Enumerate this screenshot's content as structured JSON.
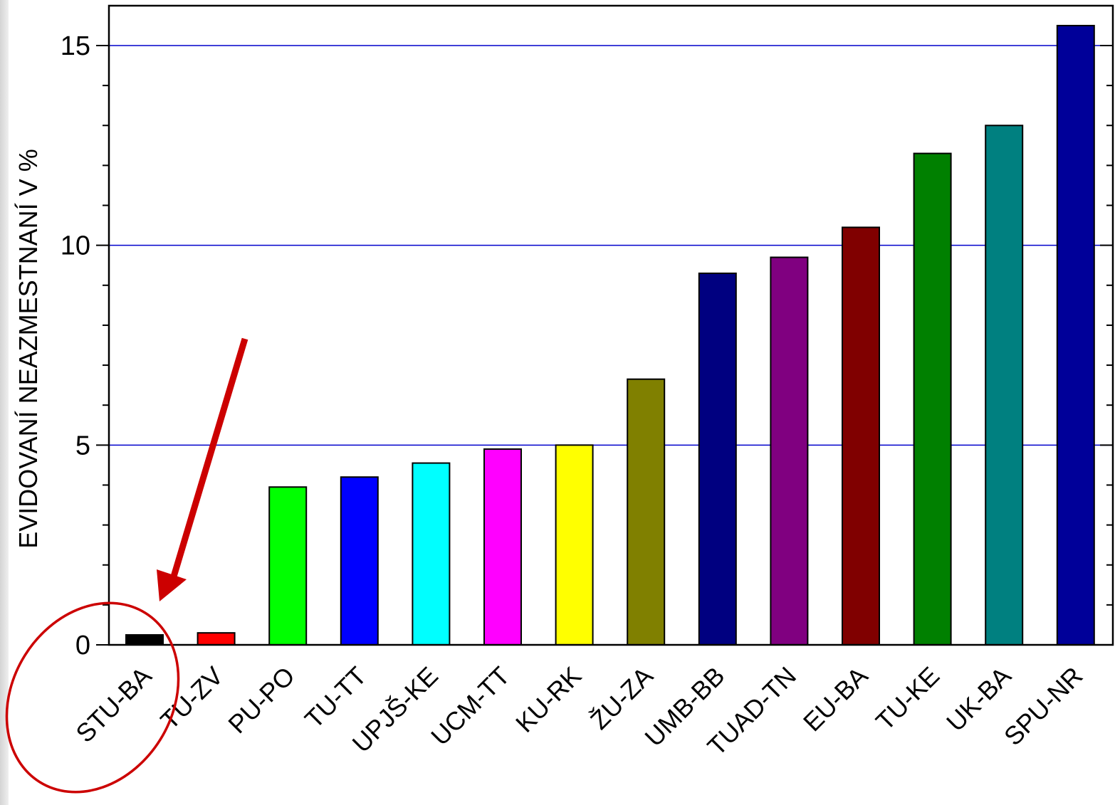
{
  "chart_data": {
    "type": "bar",
    "title": "",
    "xlabel": "",
    "ylabel": "EVIDOVANÍ NEAZMESTNANÍ V %",
    "ylim": [
      0,
      15.0
    ],
    "yticks": [
      0,
      5,
      10,
      15
    ],
    "grid": true,
    "grid_color": "#0000cc",
    "categories": [
      "STU-BA",
      "TU-ZV",
      "PU-PO",
      "TU-TT",
      "UPJŠ-KE",
      "UCM-TT",
      "KU-RK",
      "ŽU-ZA",
      "UMB-BB",
      "TUAD-TN",
      "EU-BA",
      "TU-KE",
      "UK-BA",
      "SPU-NR"
    ],
    "values": [
      0.25,
      0.3,
      3.95,
      4.2,
      4.55,
      4.9,
      5.0,
      6.65,
      9.3,
      9.7,
      10.45,
      12.3,
      13.0,
      15.5
    ],
    "colors": [
      "#000000",
      "#ff0000",
      "#00ff00",
      "#0000ff",
      "#00ffff",
      "#ff00ff",
      "#ffff00",
      "#808000",
      "#000080",
      "#800080",
      "#800000",
      "#008000",
      "#008080",
      "#000099"
    ],
    "annotation": {
      "type": "arrow-and-ellipse",
      "target_category": "STU-BA",
      "color": "#cc0000"
    }
  }
}
